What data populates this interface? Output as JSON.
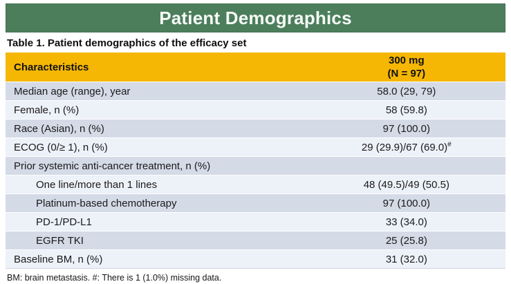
{
  "banner": {
    "title": "Patient Demographics"
  },
  "colors": {
    "banner_green": "#4c7e5c",
    "header_gold": "#f5b704",
    "row_dark": "#d4dae6",
    "row_light": "#edf1f8"
  },
  "table": {
    "caption": "Table 1. Patient demographics of the efficacy set",
    "col1_header": "Characteristics",
    "col2_header_line1": "300 mg",
    "col2_header_line2": "(N = 97)",
    "rows": [
      {
        "label": "Median age (range), year",
        "value": "58.0 (29, 79)",
        "indent": false,
        "value_sup": ""
      },
      {
        "label": "Female, n (%)",
        "value": "58 (59.8)",
        "indent": false,
        "value_sup": ""
      },
      {
        "label": "Race (Asian), n (%)",
        "value": "97 (100.0)",
        "indent": false,
        "value_sup": ""
      },
      {
        "label": "ECOG (0/≥ 1), n (%)",
        "value": "29 (29.9)/67 (69.0)",
        "indent": false,
        "value_sup": "#"
      },
      {
        "label": "Prior systemic anti-cancer treatment, n (%)",
        "value": "",
        "indent": false,
        "value_sup": ""
      },
      {
        "label": "One line/more than 1 lines",
        "value": "48 (49.5)/49 (50.5)",
        "indent": true,
        "value_sup": ""
      },
      {
        "label": "Platinum-based chemotherapy",
        "value": "97 (100.0)",
        "indent": true,
        "value_sup": ""
      },
      {
        "label": "PD-1/PD-L1",
        "value": "33 (34.0)",
        "indent": true,
        "value_sup": ""
      },
      {
        "label": "EGFR TKI",
        "value": "25 (25.8)",
        "indent": true,
        "value_sup": ""
      },
      {
        "label": "Baseline BM, n (%)",
        "value": "31 (32.0)",
        "indent": false,
        "value_sup": ""
      }
    ],
    "footnote": "BM: brain metastasis. #: There is 1 (1.0%) missing data."
  }
}
